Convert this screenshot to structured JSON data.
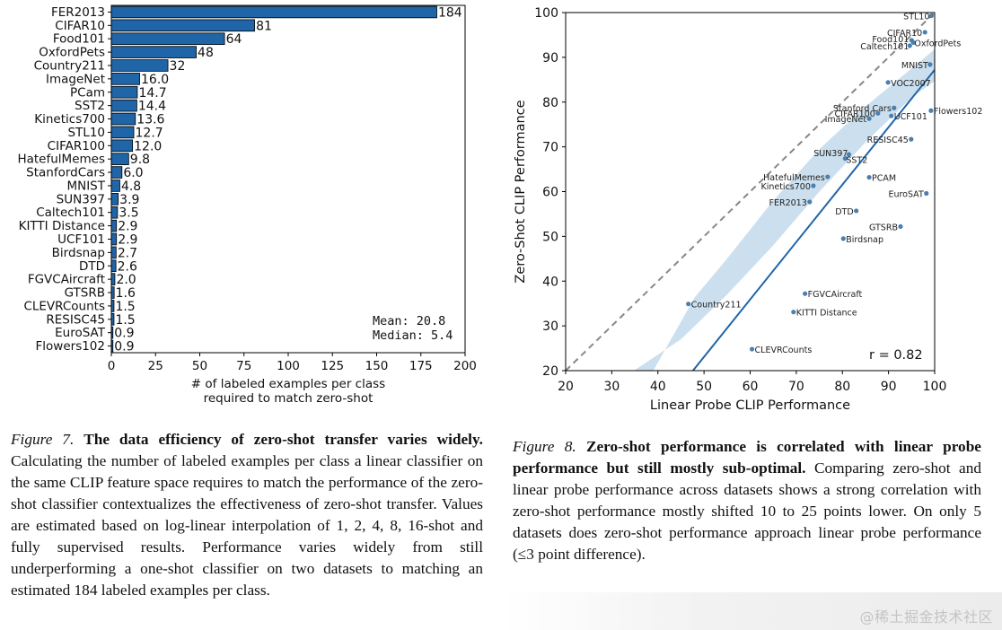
{
  "chart_data": [
    {
      "type": "bar",
      "orientation": "horizontal",
      "categories": [
        "FER2013",
        "CIFAR10",
        "Food101",
        "OxfordPets",
        "Country211",
        "ImageNet",
        "PCam",
        "SST2",
        "Kinetics700",
        "STL10",
        "CIFAR100",
        "HatefulMemes",
        "StanfordCars",
        "MNIST",
        "SUN397",
        "Caltech101",
        "KITTI Distance",
        "UCF101",
        "Birdsnap",
        "DTD",
        "FGVCAircraft",
        "GTSRB",
        "CLEVRCounts",
        "RESISC45",
        "EuroSAT",
        "Flowers102"
      ],
      "values": [
        184,
        81,
        64,
        48,
        32,
        16.0,
        14.7,
        14.4,
        13.6,
        12.7,
        12.0,
        9.8,
        6.0,
        4.8,
        3.9,
        3.5,
        2.9,
        2.9,
        2.7,
        2.6,
        2.0,
        1.6,
        1.5,
        1.5,
        0.9,
        0.9
      ],
      "value_labels": [
        "184",
        "81",
        "64",
        "48",
        "32",
        "16.0",
        "14.7",
        "14.4",
        "13.6",
        "12.7",
        "12.0",
        "9.8",
        "6.0",
        "4.8",
        "3.9",
        "3.5",
        "2.9",
        "2.9",
        "2.7",
        "2.6",
        "2.0",
        "1.6",
        "1.5",
        "1.5",
        "0.9",
        "0.9"
      ],
      "xlabel_lines": [
        "# of labeled examples per class",
        "required to match zero-shot"
      ],
      "xlim": [
        0,
        200
      ],
      "xticks": [
        0,
        25,
        50,
        75,
        100,
        125,
        150,
        175,
        200
      ],
      "bar_color": "#1f65a8",
      "annotations": {
        "mean": "Mean:  20.8",
        "median": "Median: 5.4"
      },
      "grid": false
    },
    {
      "type": "scatter",
      "xlabel": "Linear Probe CLIP Performance",
      "ylabel": "Zero-Shot CLIP Performance",
      "xlim": [
        20,
        100
      ],
      "ylim": [
        20,
        100
      ],
      "xticks": [
        20,
        30,
        40,
        50,
        60,
        70,
        80,
        90,
        100
      ],
      "yticks": [
        20,
        30,
        40,
        50,
        60,
        70,
        80,
        90,
        100
      ],
      "point_color": "#4a7fb0",
      "fit_line_color": "#1f65a8",
      "band_color": "#b9d4e8",
      "diagonal_color": "#888888",
      "points": [
        {
          "label": "STL10",
          "x": 99.3,
          "y": 99.3,
          "anchor": "end",
          "dx": -2,
          "dy": 1
        },
        {
          "label": "CIFAR10",
          "x": 97.9,
          "y": 95.6,
          "anchor": "end",
          "dx": -3,
          "dy": 1
        },
        {
          "label": "Food101",
          "x": 95.0,
          "y": 93.8,
          "anchor": "end",
          "dx": -3,
          "dy": -1
        },
        {
          "label": "OxfordPets",
          "x": 95.4,
          "y": 93.3,
          "anchor": "start",
          "dx": 1,
          "dy": 1
        },
        {
          "label": "Caltech101",
          "x": 94.6,
          "y": 92.6,
          "anchor": "end",
          "dx": -1,
          "dy": 1
        },
        {
          "label": "MNIST",
          "x": 99.0,
          "y": 88.4,
          "anchor": "end",
          "dx": -2,
          "dy": 1
        },
        {
          "label": "VOC2007",
          "x": 89.9,
          "y": 84.4,
          "anchor": "start",
          "dx": 3,
          "dy": 1
        },
        {
          "label": "Flowers102",
          "x": 99.2,
          "y": 78.1,
          "anchor": "start",
          "dx": 3,
          "dy": 1
        },
        {
          "label": "Stanford Cars",
          "x": 91.2,
          "y": 78.7,
          "anchor": "end",
          "dx": -3,
          "dy": 1
        },
        {
          "label": "CIFAR100",
          "x": 87.7,
          "y": 77.5,
          "anchor": "end",
          "dx": -3,
          "dy": 1
        },
        {
          "label": "ImageNet",
          "x": 85.8,
          "y": 76.3,
          "anchor": "end",
          "dx": -3,
          "dy": 1
        },
        {
          "label": "UCF101",
          "x": 90.6,
          "y": 76.9,
          "anchor": "start",
          "dx": 3,
          "dy": 1
        },
        {
          "label": "RESISC45",
          "x": 94.9,
          "y": 71.7,
          "anchor": "end",
          "dx": -3,
          "dy": 1
        },
        {
          "label": "SUN397",
          "x": 81.4,
          "y": 68.3,
          "anchor": "end",
          "dx": -1,
          "dy": -1
        },
        {
          "label": "SST2",
          "x": 80.6,
          "y": 67.4,
          "anchor": "start",
          "dx": 1,
          "dy": 2
        },
        {
          "label": "HatefulMemes",
          "x": 76.8,
          "y": 63.3,
          "anchor": "end",
          "dx": -3,
          "dy": 1
        },
        {
          "label": "PCAM",
          "x": 85.8,
          "y": 63.2,
          "anchor": "start",
          "dx": 3,
          "dy": 1
        },
        {
          "label": "Kinetics700",
          "x": 73.7,
          "y": 61.3,
          "anchor": "end",
          "dx": -3,
          "dy": 1
        },
        {
          "label": "EuroSAT",
          "x": 98.2,
          "y": 59.6,
          "anchor": "end",
          "dx": -3,
          "dy": 1
        },
        {
          "label": "FER2013",
          "x": 72.9,
          "y": 57.7,
          "anchor": "end",
          "dx": -3,
          "dy": 1
        },
        {
          "label": "DTD",
          "x": 83.0,
          "y": 55.7,
          "anchor": "end",
          "dx": -3,
          "dy": 1
        },
        {
          "label": "GTSRB",
          "x": 92.6,
          "y": 52.2,
          "anchor": "end",
          "dx": -3,
          "dy": 1
        },
        {
          "label": "Birdsnap",
          "x": 80.2,
          "y": 49.5,
          "anchor": "start",
          "dx": 3,
          "dy": 1
        },
        {
          "label": "FGVCAircraft",
          "x": 71.9,
          "y": 37.2,
          "anchor": "start",
          "dx": 3,
          "dy": 1
        },
        {
          "label": "Country211",
          "x": 46.6,
          "y": 34.9,
          "anchor": "start",
          "dx": 3,
          "dy": 1
        },
        {
          "label": "KITTI Distance",
          "x": 69.4,
          "y": 33.1,
          "anchor": "start",
          "dx": 3,
          "dy": 1
        },
        {
          "label": "CLEVRCounts",
          "x": 60.4,
          "y": 24.8,
          "anchor": "start",
          "dx": 3,
          "dy": 1
        }
      ],
      "fit_line": {
        "x": [
          47.6,
          100
        ],
        "y": [
          20,
          87.2
        ]
      },
      "confidence_band": [
        [
          34.8,
          20
        ],
        [
          45,
          27
        ],
        [
          55,
          37
        ],
        [
          65,
          48
        ],
        [
          75,
          60
        ],
        [
          85,
          71
        ],
        [
          95,
          81
        ],
        [
          100,
          84.7
        ],
        [
          100,
          91.8
        ],
        [
          95,
          87.5
        ],
        [
          85,
          79
        ],
        [
          75,
          69.5
        ],
        [
          65,
          58
        ],
        [
          55,
          45
        ],
        [
          48,
          36.4
        ],
        [
          39,
          20
        ]
      ],
      "diagonal": {
        "x": [
          20,
          100
        ],
        "y": [
          20,
          100
        ]
      },
      "annotations": {
        "r": "r = 0.82"
      }
    }
  ],
  "captions": {
    "fig7": {
      "label": "Figure 7.",
      "title": "The data efficiency of zero-shot transfer varies widely.",
      "body": "Calculating the number of labeled examples per class a linear classifier on the same CLIP feature space requires to match the performance of the zero-shot classifier contextualizes the effectiveness of zero-shot transfer. Values are estimated based on log-linear interpolation of 1, 2, 4, 8, 16-shot and fully supervised results. Performance varies widely from still underperforming a one-shot classifier on two datasets to matching an estimated 184 labeled examples per class."
    },
    "fig8": {
      "label": "Figure 8.",
      "title": "Zero-shot performance is correlated with linear probe performance but still mostly sub-optimal.",
      "body": "Comparing zero-shot and linear probe performance across datasets shows a strong correlation with zero-shot performance mostly shifted 10 to 25 points lower. On only 5 datasets does zero-shot performance approach linear probe performance (≤3 point difference)."
    }
  },
  "watermark": "@稀土掘金技术社区"
}
